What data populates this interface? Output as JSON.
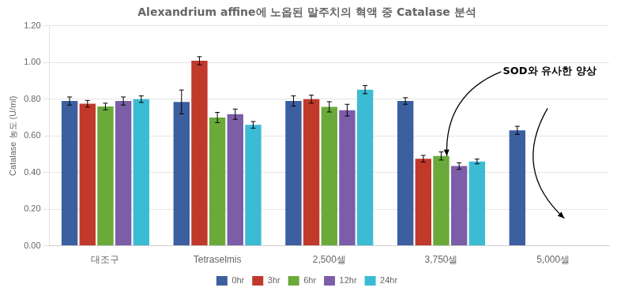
{
  "chart_data": {
    "type": "bar",
    "title": "Alexandrium affine에 노옵된 말주치의 혁액 중 Catalase 분석",
    "y_label": "Catalase 농도 (U/ml)",
    "annotations": [
      "SOD와 유사한 양상"
    ],
    "categories": [
      "대조구",
      "Tetraselmis",
      "2,500셀",
      "3,750셀",
      "5,000셀"
    ],
    "series": [
      {
        "name": "0hr",
        "color": "#3c5fa0",
        "values": [
          0.79,
          0.785,
          0.79,
          0.79,
          0.63
        ],
        "errors": [
          0.022,
          0.065,
          0.028,
          0.018,
          0.022
        ]
      },
      {
        "name": "3hr",
        "color": "#c0392b",
        "values": [
          0.775,
          1.01,
          0.8,
          0.475,
          0.0
        ],
        "errors": [
          0.018,
          0.022,
          0.022,
          0.018,
          0.0
        ]
      },
      {
        "name": "6hr",
        "color": "#6aaa3a",
        "values": [
          0.76,
          0.7,
          0.758,
          0.49,
          0.0
        ],
        "errors": [
          0.018,
          0.028,
          0.028,
          0.022,
          0.0
        ]
      },
      {
        "name": "12hr",
        "color": "#7b5ea7",
        "values": [
          0.79,
          0.718,
          0.74,
          0.435,
          0.0
        ],
        "errors": [
          0.022,
          0.028,
          0.032,
          0.018,
          0.0
        ]
      },
      {
        "name": "24hr",
        "color": "#3bbcd4",
        "values": [
          0.8,
          0.66,
          0.852,
          0.46,
          0.0
        ],
        "errors": [
          0.018,
          0.018,
          0.022,
          0.013,
          0.0
        ]
      }
    ],
    "ylim": [
      0.0,
      1.2
    ],
    "yticks": [
      {
        "value": 0.0,
        "label": "0.00"
      },
      {
        "value": 0.2,
        "label": "0.20"
      },
      {
        "value": 0.4,
        "label": "0.40"
      },
      {
        "value": 0.6,
        "label": "0.60"
      },
      {
        "value": 0.8,
        "label": "0.80"
      },
      {
        "value": 1.0,
        "label": "1.00"
      },
      {
        "value": 1.2,
        "label": "1.20"
      }
    ],
    "grid": true,
    "legend": "bottom"
  }
}
